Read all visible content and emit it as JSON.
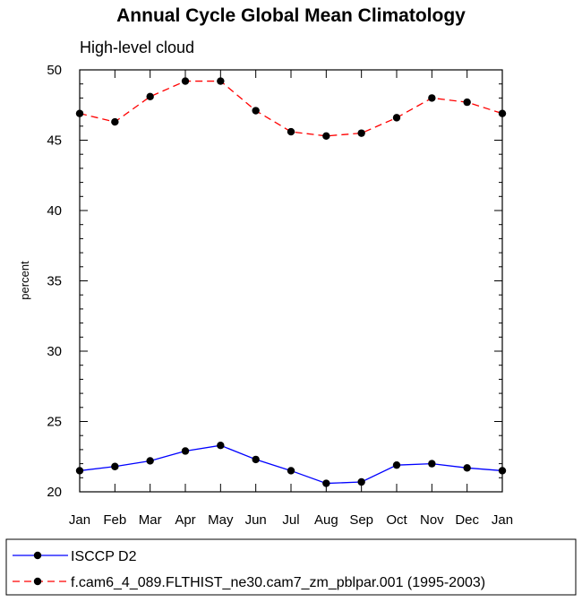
{
  "chart_data": {
    "type": "line",
    "title": "Annual Cycle Global Mean Climatology",
    "subtitle": "High-level cloud",
    "xlabel": "",
    "ylabel": "percent",
    "ylim": [
      20,
      50
    ],
    "y_ticks": [
      "20",
      "25",
      "30",
      "35",
      "40",
      "45",
      "50"
    ],
    "y_tick_values": [
      20,
      25,
      30,
      35,
      40,
      45,
      50
    ],
    "categories": [
      "Jan",
      "Feb",
      "Mar",
      "Apr",
      "May",
      "Jun",
      "Jul",
      "Aug",
      "Sep",
      "Oct",
      "Nov",
      "Dec",
      "Jan"
    ],
    "grid": false,
    "legend_position": "bottom",
    "series": [
      {
        "name": "ISCCP D2",
        "color": "#0000ff",
        "dash": "solid",
        "values": [
          21.5,
          21.8,
          22.2,
          22.9,
          23.3,
          22.3,
          21.5,
          20.6,
          20.7,
          21.9,
          22.0,
          21.7,
          21.5
        ]
      },
      {
        "name": "f.cam6_4_089.FLTHIST_ne30.cam7_zm_pblpar.001 (1995-2003)",
        "color": "#ff0000",
        "dash": "dashed",
        "values": [
          46.9,
          46.3,
          48.1,
          49.2,
          49.2,
          47.1,
          45.6,
          45.3,
          45.5,
          46.6,
          48.0,
          47.7,
          46.9
        ]
      }
    ]
  }
}
